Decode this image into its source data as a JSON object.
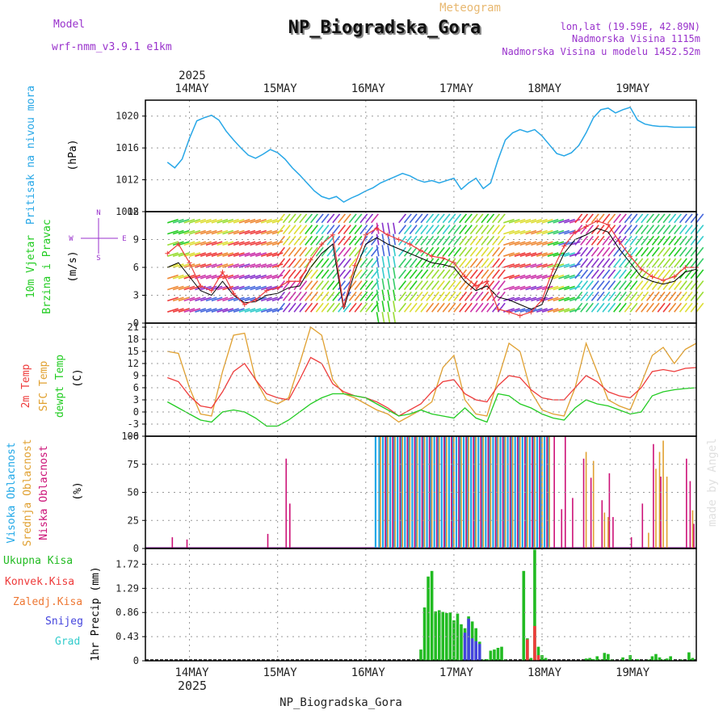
{
  "header": {
    "model_label": "Model",
    "model_name": "wrf-nmm_v3.9.1 e1km",
    "subtitle": "Meteogram",
    "station": "NP_Biogradska_Gora",
    "lonlat": "lon,lat (19.59E, 42.89N)",
    "elevation": "Nadmorska Visina 1115m",
    "model_elevation": "Nadmorska Visina u modelu 1452.52m",
    "year": "2025",
    "footer_station": "NP_Biogradska_Gora",
    "credit": "made by Angel"
  },
  "time_axis": {
    "days": [
      "14MAY",
      "15MAY",
      "16MAY",
      "17MAY",
      "18MAY",
      "19MAY"
    ],
    "year": "2025",
    "hours_total": 144
  },
  "colors": {
    "pressure": "#27a7e7",
    "temp2m": "#ee3b3b",
    "sfc_temp": "#e0a030",
    "dewpoint": "#22cc22",
    "high_cloud": "#1fa7e7",
    "mid_cloud": "#e0a030",
    "low_cloud": "#cc1177",
    "total_precip": "#22bb22",
    "conv_precip": "#ee3b3b",
    "frozen_precip": "#ee7733",
    "snow": "#4444dd",
    "hail": "#33cccc",
    "wind_speed": "#000000",
    "gust": "#ee3b3b"
  },
  "panels": {
    "pressure": {
      "label": "Pritisak na nivou mora",
      "unit": "(hPa)",
      "ticks": [
        "1020",
        "1016",
        "1012",
        "1008"
      ]
    },
    "wind": {
      "label1": "10m Vjetar",
      "label2": "Brzina i Pravac",
      "unit": "(m/s)",
      "ticks": [
        "12",
        "9",
        "6",
        "3",
        "0"
      ],
      "compass": [
        "N",
        "S",
        "W",
        "E"
      ]
    },
    "temperature": {
      "label1": "2m Temp",
      "label2": "SFC Temp",
      "label3": "dewpt Temp",
      "unit": "(C)",
      "ticks": [
        "21",
        "18",
        "15",
        "12",
        "9",
        "6",
        "3",
        "0",
        "-3",
        "-6"
      ]
    },
    "cloud": {
      "label1": "Visoka Oblacnost",
      "label2": "Srednja Oblacnost",
      "label3": "Niska Oblacnost",
      "unit": "(%)",
      "ticks": [
        "100",
        "75",
        "50",
        "25",
        "0"
      ]
    },
    "precip": {
      "legend": [
        "Ukupna Kisa",
        "Konvek.Kisa",
        "Zaledj.Kisa",
        "Snijeg",
        "Grad"
      ],
      "unit": "1hr Precip (mm)",
      "ticks": [
        "1.72",
        "1.29",
        "0.86",
        "0.43",
        "0"
      ]
    }
  },
  "chart_data": [
    {
      "type": "line",
      "name": "pressure",
      "ylim": [
        1008,
        1022
      ],
      "x_hours": [
        0,
        2,
        4,
        6,
        8,
        10,
        12,
        14,
        16,
        18,
        20,
        22,
        24,
        26,
        28,
        30,
        32,
        34,
        36,
        38,
        40,
        42,
        44,
        46,
        48,
        50,
        52,
        54,
        56,
        58,
        60,
        62,
        64,
        66,
        68,
        70,
        72,
        74,
        76,
        78,
        80,
        82,
        84,
        86,
        88,
        90,
        92,
        94,
        96,
        98,
        100,
        102,
        104,
        106,
        108,
        110,
        112,
        114,
        116,
        118,
        120,
        122,
        124,
        126,
        128,
        130,
        132,
        134,
        136,
        138,
        140,
        142,
        144
      ],
      "series": [
        {
          "values": [
            1014.2,
            1013.5,
            1014.6,
            1017.2,
            1019.4,
            1019.8,
            1020.1,
            1019.5,
            1018.1,
            1017.0,
            1016.0,
            1015.1,
            1014.7,
            1015.2,
            1015.8,
            1015.4,
            1014.6,
            1013.5,
            1012.6,
            1011.6,
            1010.6,
            1009.9,
            1009.6,
            1009.9,
            1009.2,
            1009.7,
            1010.1,
            1010.6,
            1011.0,
            1011.6,
            1012.0,
            1012.4,
            1012.8,
            1012.5,
            1012.0,
            1011.7,
            1011.9,
            1011.6,
            1011.9,
            1012.2,
            1010.8,
            1011.6,
            1012.2,
            1010.9,
            1011.6,
            1014.5,
            1017.0,
            1017.9,
            1018.3,
            1018.0,
            1018.3,
            1017.5,
            1016.4,
            1015.3,
            1015.0,
            1015.4,
            1016.3,
            1017.9,
            1019.8,
            1020.8,
            1021.0,
            1020.4,
            1020.8,
            1021.1,
            1019.5,
            1019.0,
            1018.8,
            1018.7,
            1018.7,
            1018.6,
            1018.6,
            1018.6,
            1018.6
          ]
        }
      ]
    },
    {
      "type": "line",
      "name": "wind",
      "ylim": [
        0,
        12
      ],
      "x_hours": [
        0,
        3,
        6,
        9,
        12,
        15,
        18,
        21,
        24,
        27,
        30,
        33,
        36,
        39,
        42,
        45,
        48,
        51,
        54,
        57,
        60,
        63,
        66,
        69,
        72,
        75,
        78,
        81,
        84,
        87,
        90,
        93,
        96,
        99,
        102,
        105,
        108,
        111,
        114,
        117,
        120,
        123,
        126,
        129,
        132,
        135,
        138,
        141,
        144
      ],
      "series": [
        {
          "name": "speed",
          "values": [
            6.0,
            6.5,
            5.0,
            3.5,
            3.0,
            4.5,
            3.0,
            2.2,
            2.3,
            3.0,
            3.2,
            3.8,
            4.0,
            6.0,
            7.5,
            8.5,
            1.5,
            5.5,
            8.5,
            9.2,
            8.5,
            8.0,
            7.5,
            7.0,
            6.5,
            6.3,
            6.0,
            4.5,
            3.5,
            4.0,
            2.8,
            2.5,
            2.0,
            1.5,
            2.0,
            5.0,
            7.5,
            9.0,
            9.5,
            10.2,
            9.8,
            8.0,
            6.5,
            5.0,
            4.5,
            4.2,
            4.5,
            5.5,
            5.8
          ]
        },
        {
          "name": "gust",
          "values": [
            7.5,
            8.5,
            6.5,
            4.0,
            3.5,
            5.5,
            3.2,
            2.0,
            2.5,
            3.5,
            3.8,
            4.5,
            4.5,
            6.8,
            8.5,
            9.5,
            1.8,
            6.2,
            9.5,
            10.2,
            9.5,
            9.0,
            8.5,
            7.8,
            7.2,
            7.0,
            6.5,
            5.0,
            4.0,
            4.5,
            1.5,
            1.2,
            0.8,
            1.2,
            2.5,
            5.8,
            8.3,
            9.8,
            10.4,
            11.0,
            10.6,
            8.8,
            7.2,
            5.8,
            5.0,
            4.6,
            5.0,
            6.0,
            6.0
          ]
        }
      ]
    },
    {
      "type": "line",
      "name": "temperature",
      "ylim": [
        -6,
        22
      ],
      "x_hours": [
        0,
        3,
        6,
        9,
        12,
        15,
        18,
        21,
        24,
        27,
        30,
        33,
        36,
        39,
        42,
        45,
        48,
        51,
        54,
        57,
        60,
        63,
        66,
        69,
        72,
        75,
        78,
        81,
        84,
        87,
        90,
        93,
        96,
        99,
        102,
        105,
        108,
        111,
        114,
        117,
        120,
        123,
        126,
        129,
        132,
        135,
        138,
        141,
        144
      ],
      "series": [
        {
          "name": "temp2m",
          "values": [
            8.5,
            7.5,
            4.0,
            1.5,
            1.0,
            5.0,
            10.0,
            12.0,
            8.0,
            4.5,
            3.5,
            3.0,
            8.0,
            13.5,
            12.0,
            7.0,
            5.0,
            4.0,
            3.5,
            2.5,
            1.0,
            -1.0,
            0.5,
            2.0,
            5.0,
            7.5,
            8.0,
            4.5,
            3.0,
            2.5,
            6.5,
            9.0,
            8.5,
            5.5,
            3.5,
            3.0,
            3.0,
            6.0,
            9.0,
            7.5,
            5.0,
            4.0,
            3.5,
            6.0,
            10.0,
            10.5,
            10.0,
            10.8,
            11.0
          ]
        },
        {
          "name": "sfc_temp",
          "values": [
            15.0,
            14.5,
            6.0,
            -0.5,
            -1.0,
            10.0,
            19.0,
            19.5,
            8.0,
            3.0,
            2.0,
            3.5,
            12.0,
            21.0,
            19.0,
            8.0,
            4.5,
            3.5,
            2.0,
            0.5,
            -0.5,
            -2.5,
            -1.0,
            0.5,
            2.5,
            11.0,
            14.0,
            3.0,
            -0.5,
            -1.0,
            8.0,
            17.0,
            15.0,
            5.0,
            0.5,
            -0.5,
            -1.0,
            6.0,
            17.0,
            10.0,
            3.0,
            1.5,
            0.5,
            7.0,
            14.0,
            16.0,
            12.0,
            15.5,
            17.0
          ]
        },
        {
          "name": "dewpoint",
          "values": [
            2.5,
            1.0,
            -0.5,
            -2.0,
            -2.5,
            0.0,
            0.5,
            0.0,
            -1.5,
            -3.5,
            -3.5,
            -2.0,
            0.0,
            2.0,
            3.5,
            4.5,
            4.5,
            4.0,
            3.5,
            2.0,
            0.5,
            -1.0,
            -0.5,
            0.5,
            -0.5,
            -1.0,
            -1.5,
            1.0,
            -1.5,
            -2.5,
            4.5,
            4.0,
            2.0,
            1.0,
            -0.5,
            -1.5,
            -2.0,
            1.0,
            3.0,
            2.0,
            1.5,
            0.5,
            -0.5,
            0.0,
            4.0,
            5.0,
            5.5,
            5.8,
            6.0
          ]
        }
      ]
    },
    {
      "type": "bar",
      "name": "cloud",
      "ylim": [
        0,
        100
      ],
      "series": [
        {
          "name": "high",
          "hours": [
            57,
            58,
            59,
            60,
            61,
            62,
            63,
            64,
            65,
            66,
            67,
            68,
            69,
            70,
            71,
            72,
            73,
            74,
            75,
            76,
            77,
            78,
            79,
            80,
            81,
            82,
            83,
            84,
            85,
            86,
            87,
            88,
            89,
            90,
            91,
            92,
            93,
            94,
            95,
            96,
            97,
            98,
            99,
            100,
            101,
            102,
            103,
            104
          ],
          "values": [
            100,
            100,
            100,
            100,
            100,
            100,
            100,
            100,
            100,
            100,
            100,
            100,
            100,
            100,
            100,
            100,
            100,
            100,
            100,
            100,
            100,
            100,
            100,
            100,
            100,
            100,
            100,
            100,
            100,
            100,
            100,
            100,
            100,
            100,
            100,
            100,
            100,
            100,
            100,
            100,
            100,
            100,
            100,
            100,
            100,
            100,
            100,
            100
          ]
        },
        {
          "name": "mid",
          "hours": [
            58,
            60,
            62,
            64,
            66,
            68,
            70,
            72,
            74,
            76,
            78,
            80,
            82,
            84,
            86,
            88,
            90,
            92,
            94,
            96,
            98,
            100,
            102,
            104,
            114,
            116,
            119,
            120,
            131,
            133,
            134,
            135,
            136,
            143
          ],
          "values": [
            100,
            100,
            100,
            100,
            100,
            100,
            100,
            100,
            100,
            100,
            100,
            100,
            100,
            100,
            100,
            100,
            100,
            100,
            100,
            100,
            100,
            100,
            100,
            100,
            86,
            78,
            32,
            28,
            14,
            71,
            86,
            96,
            64,
            34
          ]
        },
        {
          "name": "low",
          "hours": [
            1,
            5,
            27,
            32,
            33,
            59,
            61,
            63,
            65,
            67,
            69,
            71,
            73,
            75,
            77,
            79,
            81,
            83,
            85,
            87,
            89,
            91,
            93,
            95,
            97,
            99,
            101,
            103,
            105,
            107,
            108,
            110,
            113,
            115,
            118,
            120,
            121,
            126,
            129,
            132,
            134,
            141,
            142,
            143
          ],
          "values": [
            10,
            8,
            13,
            80,
            40,
            100,
            100,
            100,
            100,
            100,
            100,
            100,
            100,
            100,
            100,
            100,
            100,
            100,
            100,
            100,
            100,
            100,
            100,
            100,
            100,
            100,
            100,
            100,
            100,
            35,
            100,
            45,
            80,
            63,
            43,
            67,
            28,
            10,
            40,
            93,
            64,
            80,
            60,
            22
          ]
        }
      ]
    },
    {
      "type": "bar",
      "name": "precip",
      "ylim": [
        0,
        2.0
      ],
      "series": [
        {
          "name": "Ukupna Kisa",
          "hours": [
            69,
            70,
            71,
            72,
            73,
            74,
            75,
            76,
            77,
            78,
            79,
            80,
            81,
            82,
            83,
            84,
            85,
            86,
            87,
            88,
            89,
            90,
            91,
            92,
            97,
            98,
            99,
            100,
            101,
            102,
            103,
            114,
            115,
            116,
            117,
            118,
            119,
            120,
            121,
            124,
            126,
            128,
            131,
            132,
            133,
            134,
            135,
            136,
            137,
            140,
            142,
            143
          ],
          "values": [
            0.2,
            0.95,
            1.5,
            1.6,
            0.88,
            0.9,
            0.87,
            0.85,
            0.86,
            0.72,
            0.84,
            0.65,
            0.58,
            0.79,
            0.7,
            0.58,
            0.34,
            0.02,
            0.03,
            0.18,
            0.2,
            0.23,
            0.25,
            0.02,
            1.6,
            0.4,
            0.05,
            1.98,
            0.25,
            0.1,
            0.05,
            0.04,
            0.05,
            0.03,
            0.08,
            0.02,
            0.14,
            0.12,
            0.02,
            0.06,
            0.1,
            0.03,
            0.02,
            0.08,
            0.12,
            0.06,
            0.02,
            0.04,
            0.08,
            0.02,
            0.15,
            0.05
          ]
        },
        {
          "name": "Konvek.Kisa",
          "hours": [
            98,
            100,
            101
          ],
          "values": [
            0.38,
            0.62,
            0.1
          ]
        },
        {
          "name": "Snijeg",
          "hours": [
            81,
            82,
            83,
            84,
            85
          ],
          "values": [
            0.5,
            0.75,
            0.4,
            0.35,
            0.3
          ]
        }
      ]
    }
  ]
}
